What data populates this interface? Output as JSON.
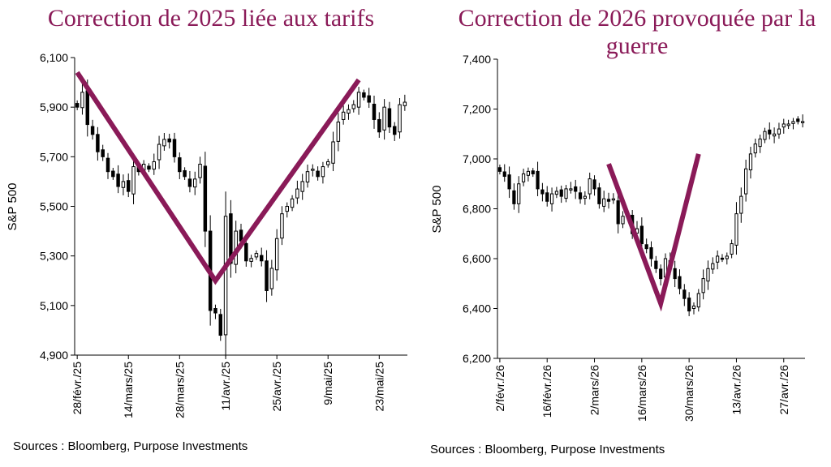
{
  "colors": {
    "v_line": "#8a1a58",
    "title": "#8a1a58",
    "candle": "#000000",
    "axis": "#000000"
  },
  "chart_data": [
    {
      "type": "candlestick",
      "title": "Correction de 2025 liée aux tarifs",
      "ylabel": "S&P 500",
      "yticks": [
        "6,100",
        "5,900",
        "5,700",
        "5,500",
        "5,300",
        "5,100",
        "4,900"
      ],
      "ylim": [
        4900,
        6100
      ],
      "xticks": [
        "28/févr./25",
        "14/mars/25",
        "28/mars/25",
        "11/avr./25",
        "25/avr./25",
        "9/mai/25",
        "23/mai/25"
      ],
      "trading_days": 65,
      "xtick_days": [
        0,
        10,
        20,
        29,
        39,
        49,
        59
      ],
      "close_series": [
        5900,
        5960,
        5830,
        5790,
        5720,
        5700,
        5640,
        5620,
        5580,
        5600,
        5560,
        5660,
        5640,
        5670,
        5650,
        5680,
        5750,
        5770,
        5760,
        5700,
        5640,
        5620,
        5580,
        5610,
        5670,
        5400,
        5080,
        5070,
        4980,
        5460,
        5270,
        5400,
        5360,
        5280,
        5290,
        5310,
        5280,
        5160,
        5250,
        5370,
        5470,
        5500,
        5530,
        5570,
        5600,
        5640,
        5650,
        5620,
        5660,
        5680,
        5760,
        5840,
        5880,
        5890,
        5910,
        5960,
        5940,
        5920,
        5850,
        5800,
        5900,
        5820,
        5790,
        5910,
        5920
      ],
      "v_line": {
        "x": [
          0,
          27,
          55
        ],
        "y": [
          6040,
          5200,
          6010
        ]
      },
      "source": "Sources : Bloomberg, Purpose Investments",
      "grid": false
    },
    {
      "type": "candlestick",
      "title": "Correction de 2026 provoquée par la guerre",
      "ylabel": "S&P 500",
      "yticks": [
        "7,400",
        "7,200",
        "7,000",
        "6,800",
        "6,600",
        "6,400",
        "6,200"
      ],
      "ylim": [
        6200,
        7400
      ],
      "xticks": [
        "2/févr./26",
        "16/févr./26",
        "2/mars/26",
        "16/mars/26",
        "30/mars/26",
        "13/avr./26",
        "27/avr./26"
      ],
      "trading_days": 65,
      "xtick_days": [
        0,
        10,
        20,
        30,
        40,
        50,
        60
      ],
      "close_series": [
        6950,
        6930,
        6880,
        6820,
        6900,
        6940,
        6950,
        6940,
        6880,
        6860,
        6830,
        6860,
        6870,
        6850,
        6880,
        6880,
        6870,
        6840,
        6850,
        6920,
        6880,
        6820,
        6840,
        6830,
        6840,
        6740,
        6770,
        6780,
        6700,
        6720,
        6660,
        6640,
        6600,
        6560,
        6520,
        6600,
        6560,
        6520,
        6480,
        6440,
        6390,
        6410,
        6460,
        6520,
        6560,
        6580,
        6610,
        6600,
        6610,
        6660,
        6780,
        6850,
        6960,
        7020,
        7060,
        7080,
        7110,
        7100,
        7100,
        7120,
        7140,
        7140,
        7150,
        7150,
        7150
      ],
      "v_line": {
        "x": [
          23,
          34,
          42
        ],
        "y": [
          6980,
          6420,
          7020
        ]
      },
      "source": "Sources : Bloomberg, Purpose Investments",
      "grid": false
    }
  ]
}
